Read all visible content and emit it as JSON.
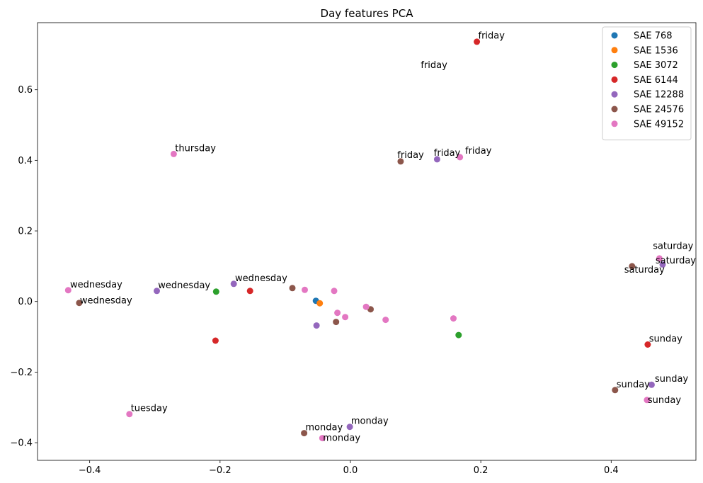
{
  "chart_data": {
    "type": "scatter",
    "title": "Day features PCA",
    "xlabel": "",
    "ylabel": "",
    "xlim": [
      -0.48,
      0.53
    ],
    "ylim": [
      -0.45,
      0.79
    ],
    "xticks": [
      -0.4,
      -0.2,
      0.0,
      0.2,
      0.4
    ],
    "xtick_labels": [
      "−0.4",
      "−0.2",
      "0.0",
      "0.2",
      "0.4"
    ],
    "yticks": [
      -0.4,
      -0.2,
      0.0,
      0.2,
      0.4,
      0.6
    ],
    "ytick_labels": [
      "−0.4",
      "−0.2",
      "0.0",
      "0.2",
      "0.4",
      "0.6"
    ],
    "grid": false,
    "legend_position": "top-right",
    "series": [
      {
        "name": "SAE 768",
        "color": "#1f77b4",
        "points": [
          {
            "x": -0.053,
            "y": 0.002,
            "label": ""
          }
        ]
      },
      {
        "name": "SAE 1536",
        "color": "#ff7f0e",
        "points": [
          {
            "x": -0.047,
            "y": -0.005,
            "label": ""
          }
        ]
      },
      {
        "name": "SAE 3072",
        "color": "#2ca02c",
        "points": [
          {
            "x": -0.206,
            "y": 0.028,
            "label": ""
          },
          {
            "x": 0.166,
            "y": -0.095,
            "label": ""
          }
        ]
      },
      {
        "name": "SAE 6144",
        "color": "#d62728",
        "points": [
          {
            "x": 0.194,
            "y": 0.736,
            "label": "friday"
          },
          {
            "x": -0.154,
            "y": 0.03,
            "label": ""
          },
          {
            "x": -0.207,
            "y": -0.111,
            "label": ""
          },
          {
            "x": 0.456,
            "y": -0.122,
            "label": "sunday"
          }
        ]
      },
      {
        "name": "SAE 12288",
        "color": "#9467bd",
        "points": [
          {
            "x": 0.133,
            "y": 0.403,
            "label": "friday"
          },
          {
            "x": -0.179,
            "y": 0.05,
            "label": "wednesday"
          },
          {
            "x": -0.297,
            "y": 0.03,
            "label": "wednesday"
          },
          {
            "x": -0.052,
            "y": -0.068,
            "label": ""
          },
          {
            "x": -0.001,
            "y": -0.355,
            "label": "monday"
          },
          {
            "x": 0.479,
            "y": 0.105,
            "label": "saturday"
          },
          {
            "x": 0.462,
            "y": -0.236,
            "label": "sunday"
          }
        ]
      },
      {
        "name": "SAE 24576",
        "color": "#8c564b",
        "points": [
          {
            "x": 0.077,
            "y": 0.397,
            "label": "friday"
          },
          {
            "x": -0.416,
            "y": -0.004,
            "label": "wednesday"
          },
          {
            "x": -0.089,
            "y": 0.038,
            "label": ""
          },
          {
            "x": -0.022,
            "y": -0.058,
            "label": ""
          },
          {
            "x": 0.031,
            "y": -0.022,
            "label": ""
          },
          {
            "x": -0.071,
            "y": -0.373,
            "label": "monday"
          },
          {
            "x": 0.432,
            "y": 0.1,
            "label": "saturday"
          },
          {
            "x": 0.406,
            "y": -0.251,
            "label": "sunday"
          }
        ]
      },
      {
        "name": "SAE 49152",
        "color": "#e377c2",
        "points": [
          {
            "x": 0.168,
            "y": 0.409,
            "label": "friday"
          },
          {
            "x": -0.271,
            "y": 0.418,
            "label": "thursday"
          },
          {
            "x": -0.433,
            "y": 0.032,
            "label": "wednesday"
          },
          {
            "x": -0.07,
            "y": 0.033,
            "label": ""
          },
          {
            "x": -0.025,
            "y": 0.03,
            "label": ""
          },
          {
            "x": -0.02,
            "y": -0.032,
            "label": ""
          },
          {
            "x": -0.008,
            "y": -0.044,
            "label": ""
          },
          {
            "x": 0.024,
            "y": -0.015,
            "label": ""
          },
          {
            "x": 0.054,
            "y": -0.052,
            "label": ""
          },
          {
            "x": 0.158,
            "y": -0.048,
            "label": ""
          },
          {
            "x": -0.339,
            "y": -0.319,
            "label": "tuesday"
          },
          {
            "x": -0.043,
            "y": -0.387,
            "label": "monday"
          },
          {
            "x": 0.474,
            "y": 0.122,
            "label": "saturday"
          },
          {
            "x": 0.455,
            "y": -0.279,
            "label": "sunday"
          }
        ]
      }
    ],
    "annotations": [
      {
        "text": "friday",
        "x": 0.196,
        "y": 0.745
      },
      {
        "text": "friday",
        "x": 0.108,
        "y": 0.662
      },
      {
        "text": "thursday",
        "x": -0.269,
        "y": 0.426
      },
      {
        "text": "friday",
        "x": 0.072,
        "y": 0.407
      },
      {
        "text": "friday",
        "x": 0.128,
        "y": 0.413
      },
      {
        "text": "friday",
        "x": 0.176,
        "y": 0.419
      },
      {
        "text": "saturday",
        "x": 0.464,
        "y": 0.149
      },
      {
        "text": "saturday",
        "x": 0.468,
        "y": 0.108
      },
      {
        "text": "saturday",
        "x": 0.42,
        "y": 0.082
      },
      {
        "text": "wednesday",
        "x": -0.43,
        "y": 0.04
      },
      {
        "text": "wednesday",
        "x": -0.295,
        "y": 0.038
      },
      {
        "text": "wednesday",
        "x": -0.177,
        "y": 0.058
      },
      {
        "text": "wednesday",
        "x": -0.415,
        "y": -0.006
      },
      {
        "text": "sunday",
        "x": 0.458,
        "y": -0.114
      },
      {
        "text": "sunday",
        "x": 0.467,
        "y": -0.227
      },
      {
        "text": "sunday",
        "x": 0.408,
        "y": -0.243
      },
      {
        "text": "sunday",
        "x": 0.456,
        "y": -0.287
      },
      {
        "text": "tuesday",
        "x": -0.337,
        "y": -0.311
      },
      {
        "text": "monday",
        "x": -0.069,
        "y": -0.365
      },
      {
        "text": "monday",
        "x": 0.001,
        "y": -0.347
      },
      {
        "text": "monday",
        "x": -0.042,
        "y": -0.395
      }
    ]
  }
}
